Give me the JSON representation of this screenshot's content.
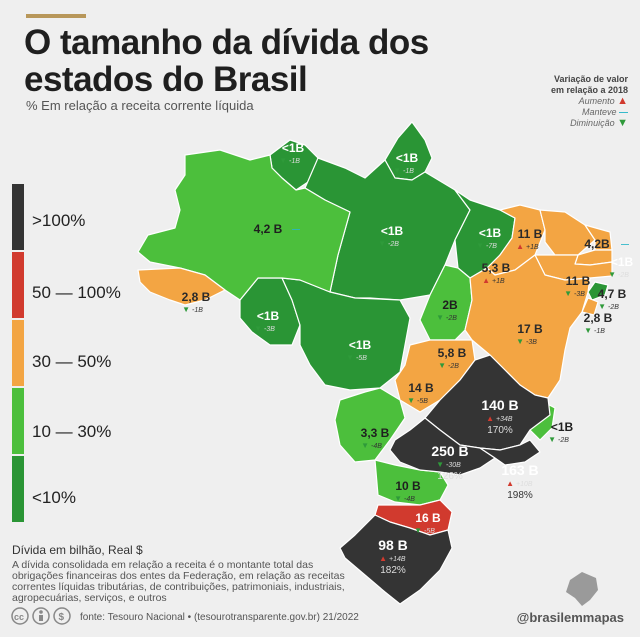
{
  "title_line1": "O tamanho da dívida dos",
  "title_line2": "estados do Brasil",
  "subtitle": "% Em relação a receita corrente líquida",
  "variation_legend": {
    "title_line1": "Variação de valor",
    "title_line2": "em relação a 2018",
    "items": [
      {
        "label": "Aumento",
        "symbol": "▲",
        "color": "#d13a2e"
      },
      {
        "label": "Manteve",
        "symbol": "—",
        "color": "#28b6c8"
      },
      {
        "label": "Diminuição",
        "symbol": "▼",
        "color": "#2f9a3a"
      }
    ]
  },
  "color_scale": [
    {
      "label": ">100%",
      "color": "#343434"
    },
    {
      "label": "50 — 100%",
      "color": "#d13a2e"
    },
    {
      "label": "30 — 50%",
      "color": "#f3a543"
    },
    {
      "label": "10 — 30%",
      "color": "#4cbf3c"
    },
    {
      "label": "<10%",
      "color": "#2a9535"
    }
  ],
  "colors": {
    "dark": "#343434",
    "red": "#d13a2e",
    "orange": "#f3a543",
    "light_green": "#4cbf3c",
    "dark_green": "#2a9535",
    "accent": "#b8975a"
  },
  "states": [
    {
      "value": "<1B",
      "change": "-1B",
      "trend": "down",
      "class": "dark_green"
    },
    {
      "value": "<1B",
      "change": "-1B",
      "trend": "down",
      "class": "dark_green"
    },
    {
      "value": "4,2 B",
      "change": "",
      "trend": "same",
      "class": "light_green"
    },
    {
      "value": "<1B",
      "change": "-2B",
      "trend": "down",
      "class": "dark_green"
    },
    {
      "value": "<1B",
      "change": "-7B",
      "trend": "down",
      "class": "dark_green"
    },
    {
      "value": "2,8 B",
      "change": "-1B",
      "trend": "down",
      "class": "orange"
    },
    {
      "value": "<1B",
      "change": "-3B",
      "trend": "down",
      "class": "dark_green"
    },
    {
      "value": "<1B",
      "change": "-5B",
      "trend": "down",
      "class": "dark_green"
    },
    {
      "value": "2B",
      "change": "-2B",
      "trend": "down",
      "class": "light_green"
    },
    {
      "value": "11 B",
      "change": "+1B",
      "trend": "up",
      "class": "orange"
    },
    {
      "value": "4,2B",
      "change": "",
      "trend": "same",
      "class": "orange"
    },
    {
      "value": "<1B",
      "change": "-2B",
      "trend": "down",
      "class": "dark_green"
    },
    {
      "value": "5,3 B",
      "change": "+1B",
      "trend": "up",
      "class": "orange"
    },
    {
      "value": "11 B",
      "change": "-3B",
      "trend": "down",
      "class": "orange"
    },
    {
      "value": "4,7 B",
      "change": "-2B",
      "trend": "down",
      "class": "orange"
    },
    {
      "value": "2,8 B",
      "change": "-1B",
      "trend": "down",
      "class": "orange"
    },
    {
      "value": "17 B",
      "change": "-3B",
      "trend": "down",
      "class": "orange"
    },
    {
      "value": "5,8 B",
      "change": "-2B",
      "trend": "down",
      "class": "orange"
    },
    {
      "value": "14 B",
      "change": "-5B",
      "trend": "down",
      "class": "orange"
    },
    {
      "value": "140 B",
      "change": "+34B",
      "trend": "up",
      "pct": "170%",
      "class": "dark"
    },
    {
      "value": "3,3 B",
      "change": "-4B",
      "trend": "down",
      "class": "light_green"
    },
    {
      "value": "250 B",
      "change": "-30B",
      "trend": "down",
      "pct": "126%",
      "class": "dark"
    },
    {
      "value": "<1B",
      "change": "-2B",
      "trend": "down",
      "class": "light_green"
    },
    {
      "value": "163 B",
      "change": "+10B",
      "trend": "up",
      "pct": "198%",
      "class": "dark"
    },
    {
      "value": "10 B",
      "change": "-4B",
      "trend": "down",
      "class": "light_green"
    },
    {
      "value": "16 B",
      "change": "-5B",
      "trend": "down",
      "class": "red"
    },
    {
      "value": "98 B",
      "change": "+14B",
      "trend": "up",
      "pct": "182%",
      "class": "dark"
    }
  ],
  "footnote_head": "Dívida em bilhão, Real $",
  "footnote": "A dívida consolidada em relação a receita é o montante total das obrigações financeiras dos entes da Federação, em relação as receitas correntes líquidas tributárias, de contribuições, patrimoniais, industriais, agropecuárias, serviços, e outros",
  "source": "fonte: Tesouro Nacional • (tesourotransparente.gov.br) 21/2022",
  "handle": "@brasilemmapas",
  "icons": [
    "cc-icon",
    "attribution-icon",
    "nc-icon",
    "brazil-map-icon"
  ]
}
